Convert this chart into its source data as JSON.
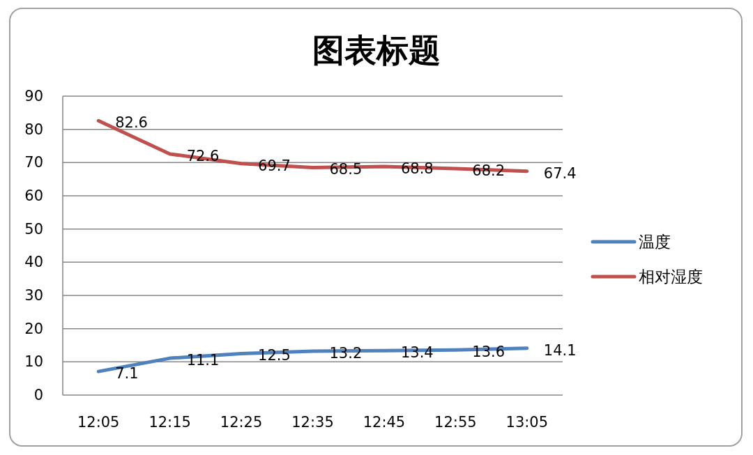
{
  "chart_data": {
    "type": "line",
    "title": "图表标题",
    "categories": [
      "12:05",
      "12:15",
      "12:25",
      "12:35",
      "12:45",
      "12:55",
      "13:05"
    ],
    "series": [
      {
        "name": "温度",
        "color": "#4f81bd",
        "values": [
          7.1,
          11.1,
          12.5,
          13.2,
          13.4,
          13.6,
          14.1
        ]
      },
      {
        "name": "相对湿度",
        "color": "#c0504d",
        "values": [
          82.6,
          72.6,
          69.7,
          68.5,
          68.8,
          68.2,
          67.4
        ]
      }
    ],
    "ylim": [
      0,
      90
    ],
    "yticks": [
      0,
      10,
      20,
      30,
      40,
      50,
      60,
      70,
      80,
      90
    ],
    "grid": "y",
    "legend": "right",
    "data_labels": true
  }
}
